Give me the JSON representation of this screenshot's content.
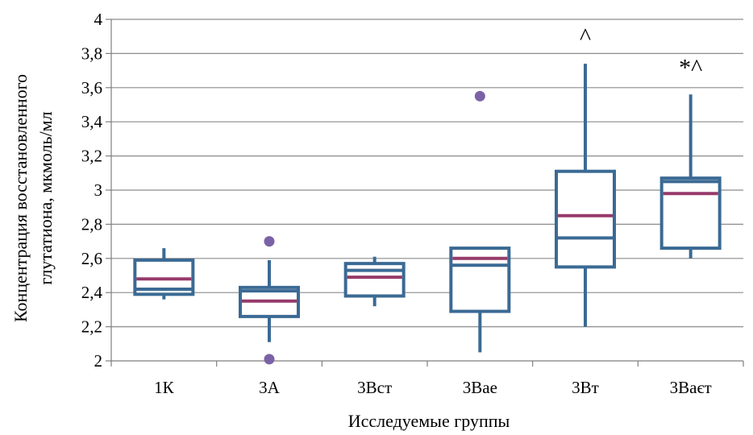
{
  "chart_data": {
    "type": "box",
    "title": "",
    "xlabel": "Исследуемые группы",
    "ylabel_lines": [
      "Концентрация восстановленного",
      "глутатиона, мкмоль/мл"
    ],
    "ylim": [
      2,
      4
    ],
    "ytick_step": 0.2,
    "ytick_labels": [
      "2",
      "2,2",
      "2,4",
      "2,6",
      "2,8",
      "3",
      "3,2",
      "3,4",
      "3,6",
      "3,8",
      "4"
    ],
    "grid": "horizontal",
    "categories": [
      "1К",
      "3А",
      "3Вст",
      "3Вае",
      "3Вт",
      "3Ваєт"
    ],
    "groups": [
      {
        "label": "1К",
        "whisker_low": 2.36,
        "q1": 2.39,
        "median": 2.42,
        "q3": 2.59,
        "whisker_high": 2.66,
        "mean": 2.48,
        "outliers": [],
        "marker": ""
      },
      {
        "label": "3А",
        "whisker_low": 2.11,
        "q1": 2.26,
        "median": 2.41,
        "q3": 2.43,
        "whisker_high": 2.59,
        "mean": 2.35,
        "outliers": [
          2.7,
          2.01
        ],
        "marker": ""
      },
      {
        "label": "3Вст",
        "whisker_low": 2.32,
        "q1": 2.38,
        "median": 2.53,
        "q3": 2.57,
        "whisker_high": 2.61,
        "mean": 2.49,
        "outliers": [],
        "marker": ""
      },
      {
        "label": "3Вае",
        "whisker_low": 2.05,
        "q1": 2.29,
        "median": 2.56,
        "q3": 2.66,
        "whisker_high": 2.66,
        "mean": 2.6,
        "outliers": [
          3.55
        ],
        "marker": ""
      },
      {
        "label": "3Вт",
        "whisker_low": 2.2,
        "q1": 2.55,
        "median": 2.72,
        "q3": 3.11,
        "whisker_high": 3.74,
        "mean": 2.85,
        "outliers": [],
        "marker": "^"
      },
      {
        "label": "3Ваєт",
        "whisker_low": 2.6,
        "q1": 2.66,
        "median": 3.05,
        "q3": 3.07,
        "whisker_high": 3.56,
        "mean": 2.98,
        "outliers": [],
        "marker": "*^"
      }
    ],
    "colors": {
      "box": "#3b6a94",
      "mean": "#973a6a",
      "outlier": "#7b62a6",
      "grid": "#8c8c8c",
      "axis": "#7f7f7f"
    }
  }
}
